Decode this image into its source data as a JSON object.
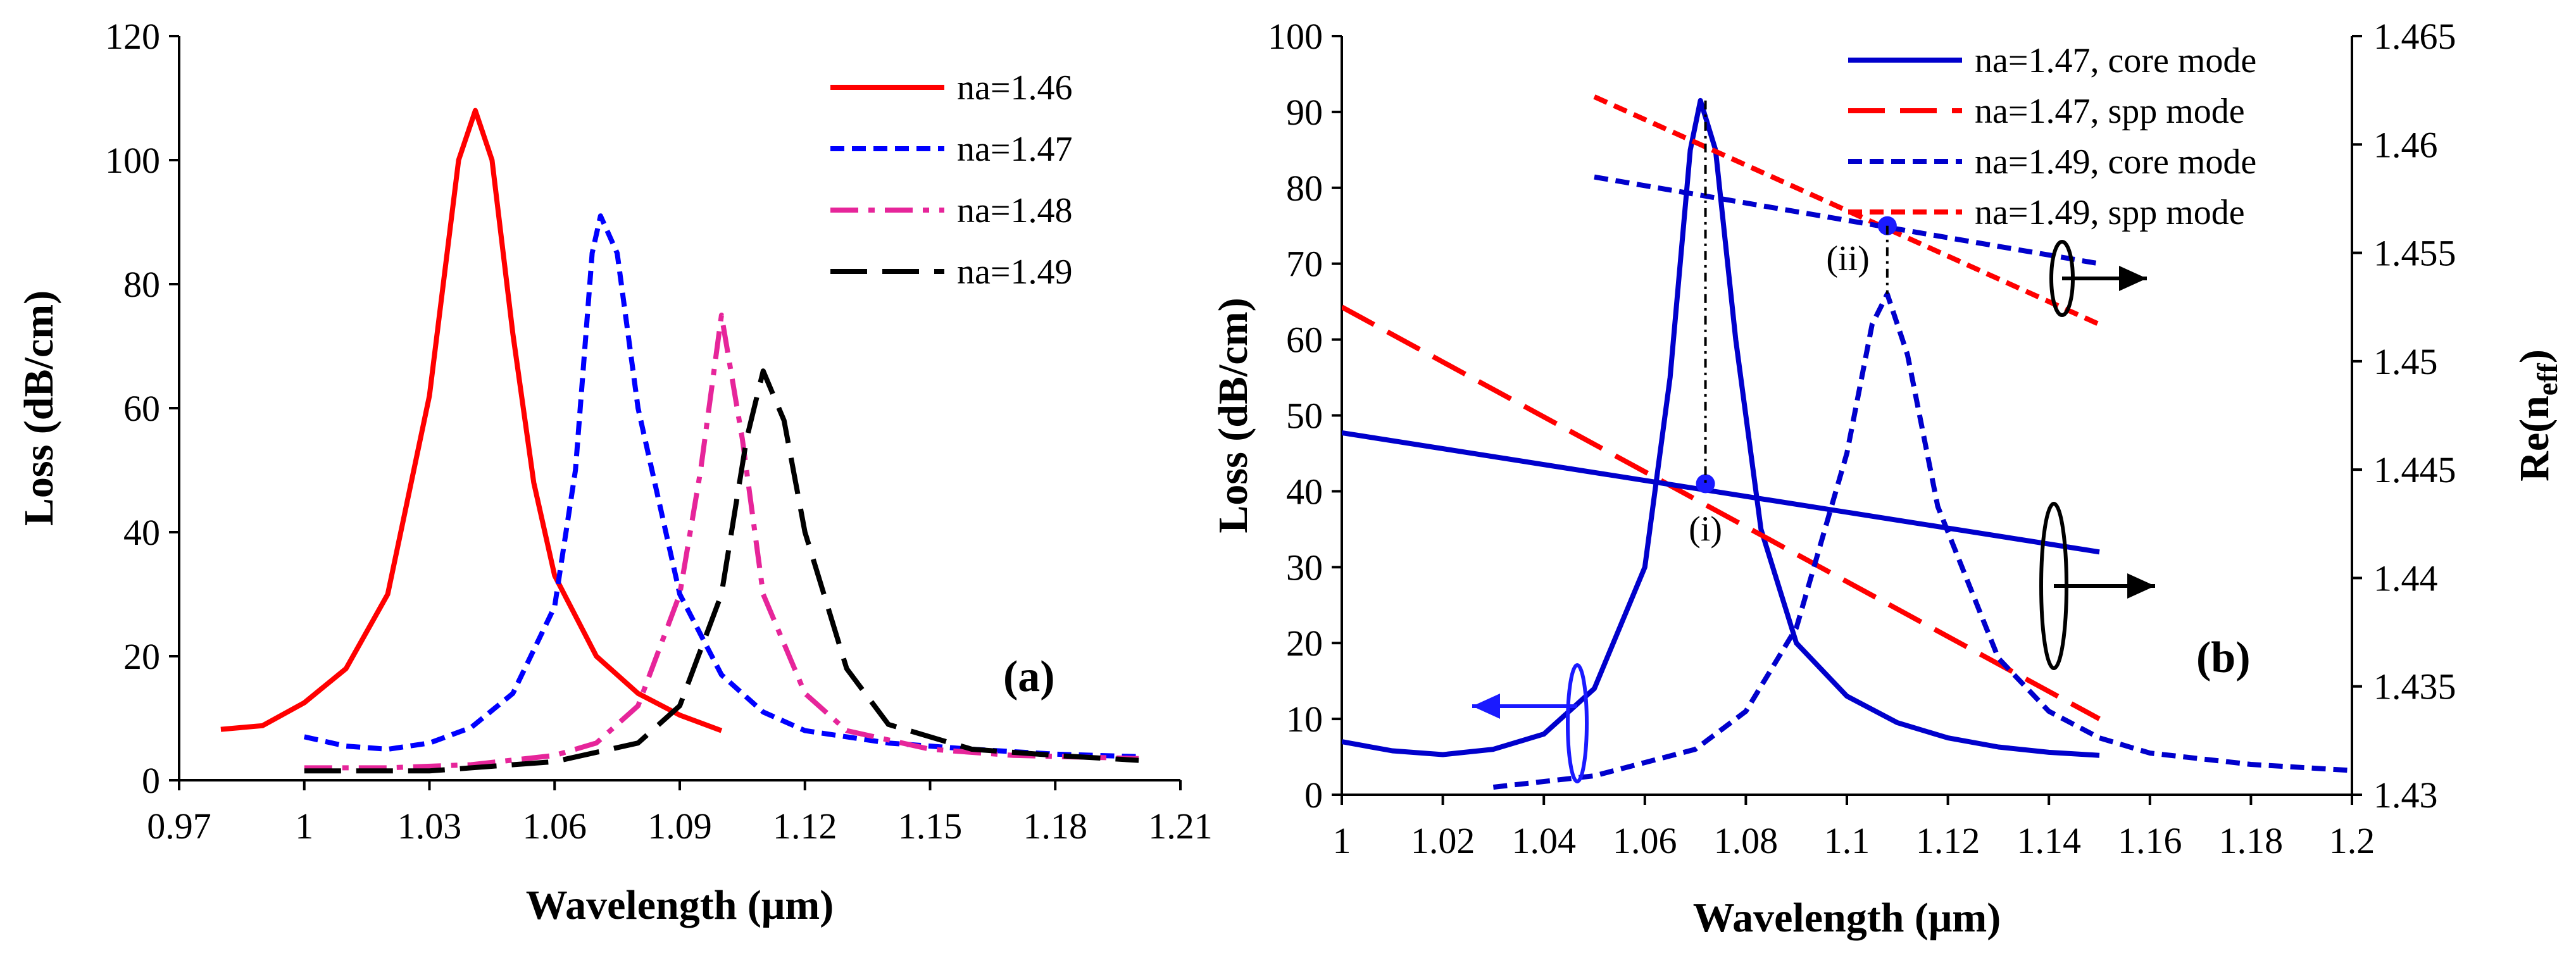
{
  "chart_data": [
    {
      "type": "line",
      "panel_label": "(a)",
      "xlabel": "Wavelength (μm)",
      "ylabel": "Loss (dB/cm)",
      "xlim": [
        0.97,
        1.21
      ],
      "ylim": [
        0,
        120
      ],
      "x_ticks": [
        0.97,
        1,
        1.03,
        1.06,
        1.09,
        1.12,
        1.15,
        1.18,
        1.21
      ],
      "x_tick_labels": [
        "0.97",
        "1",
        "1.03",
        "1.06",
        "1.09",
        "1.12",
        "1.15",
        "1.18",
        "1.21"
      ],
      "y_ticks": [
        0,
        20,
        40,
        60,
        80,
        100,
        120
      ],
      "y_tick_labels": [
        "0",
        "20",
        "40",
        "60",
        "80",
        "100",
        "120"
      ],
      "legend_position": "top-right",
      "series": [
        {
          "name": "na=1.46",
          "color": "#ff0000",
          "style": "solid",
          "points": [
            [
              0.98,
              8.2
            ],
            [
              0.99,
              8.8
            ],
            [
              1.0,
              12.5
            ],
            [
              1.01,
              18
            ],
            [
              1.02,
              30
            ],
            [
              1.03,
              62
            ],
            [
              1.037,
              100
            ],
            [
              1.041,
              108
            ],
            [
              1.045,
              100
            ],
            [
              1.05,
              72
            ],
            [
              1.055,
              48
            ],
            [
              1.06,
              33
            ],
            [
              1.07,
              20
            ],
            [
              1.08,
              14
            ],
            [
              1.09,
              10.5
            ],
            [
              1.1,
              8
            ]
          ]
        },
        {
          "name": "na=1.47",
          "color": "#0000ff",
          "style": "short-dash",
          "points": [
            [
              1.0,
              7
            ],
            [
              1.01,
              5.5
            ],
            [
              1.02,
              5
            ],
            [
              1.03,
              6
            ],
            [
              1.04,
              8.5
            ],
            [
              1.05,
              14
            ],
            [
              1.06,
              28
            ],
            [
              1.065,
              50
            ],
            [
              1.069,
              85
            ],
            [
              1.071,
              91
            ],
            [
              1.075,
              85
            ],
            [
              1.08,
              60
            ],
            [
              1.09,
              30
            ],
            [
              1.1,
              17
            ],
            [
              1.11,
              11
            ],
            [
              1.12,
              8
            ],
            [
              1.14,
              6
            ],
            [
              1.16,
              5
            ],
            [
              1.18,
              4.2
            ],
            [
              1.2,
              3.8
            ]
          ]
        },
        {
          "name": "na=1.48",
          "color": "#e6259a",
          "style": "dash-dot",
          "points": [
            [
              1.0,
              2
            ],
            [
              1.02,
              2
            ],
            [
              1.04,
              2.5
            ],
            [
              1.06,
              4
            ],
            [
              1.07,
              6
            ],
            [
              1.08,
              12
            ],
            [
              1.09,
              30
            ],
            [
              1.095,
              50
            ],
            [
              1.1,
              75
            ],
            [
              1.105,
              55
            ],
            [
              1.11,
              30
            ],
            [
              1.12,
              14
            ],
            [
              1.13,
              8
            ],
            [
              1.15,
              5
            ],
            [
              1.17,
              4
            ],
            [
              1.2,
              3.5
            ]
          ]
        },
        {
          "name": "na=1.49",
          "color": "#000000",
          "style": "long-dash",
          "points": [
            [
              1.0,
              1.5
            ],
            [
              1.03,
              1.5
            ],
            [
              1.06,
              3
            ],
            [
              1.08,
              6
            ],
            [
              1.09,
              12
            ],
            [
              1.1,
              30
            ],
            [
              1.106,
              55
            ],
            [
              1.11,
              66
            ],
            [
              1.115,
              58
            ],
            [
              1.12,
              40
            ],
            [
              1.13,
              18
            ],
            [
              1.14,
              9
            ],
            [
              1.16,
              5
            ],
            [
              1.18,
              4
            ],
            [
              1.2,
              3.2
            ]
          ]
        }
      ]
    },
    {
      "type": "line",
      "panel_label": "(b)",
      "xlabel": "Wavelength (μm)",
      "ylabel": "Loss (dB/cm)",
      "y2label": "Re(n",
      "y2label_sub": "eff",
      "y2label_end": ")",
      "xlim": [
        1,
        1.2
      ],
      "ylim": [
        0,
        100
      ],
      "y2lim": [
        1.43,
        1.465
      ],
      "x_ticks": [
        1,
        1.02,
        1.04,
        1.06,
        1.08,
        1.1,
        1.12,
        1.14,
        1.16,
        1.18,
        1.2
      ],
      "x_tick_labels": [
        "1",
        "1.02",
        "1.04",
        "1.06",
        "1.08",
        "1.1",
        "1.12",
        "1.14",
        "1.16",
        "1.18",
        "1.2"
      ],
      "y_ticks": [
        0,
        10,
        20,
        30,
        40,
        50,
        60,
        70,
        80,
        90,
        100
      ],
      "y_tick_labels": [
        "0",
        "10",
        "20",
        "30",
        "40",
        "50",
        "60",
        "70",
        "80",
        "90",
        "100"
      ],
      "y2_ticks": [
        1.43,
        1.435,
        1.44,
        1.445,
        1.45,
        1.455,
        1.46,
        1.465
      ],
      "y2_tick_labels": [
        "1.43",
        "1.435",
        "1.44",
        "1.445",
        "1.45",
        "1.455",
        "1.46",
        "1.465"
      ],
      "legend_position": "top-right",
      "series": [
        {
          "name": "na=1.47, core mode",
          "color": "#0000cc",
          "style": "solid",
          "axis": "left",
          "points": [
            [
              1.0,
              7
            ],
            [
              1.01,
              5.8
            ],
            [
              1.02,
              5.3
            ],
            [
              1.03,
              6
            ],
            [
              1.04,
              8
            ],
            [
              1.05,
              14
            ],
            [
              1.06,
              30
            ],
            [
              1.065,
              55
            ],
            [
              1.069,
              85
            ],
            [
              1.071,
              91.5
            ],
            [
              1.074,
              85
            ],
            [
              1.078,
              60
            ],
            [
              1.083,
              35
            ],
            [
              1.09,
              20
            ],
            [
              1.1,
              13
            ],
            [
              1.11,
              9.5
            ],
            [
              1.12,
              7.5
            ],
            [
              1.13,
              6.3
            ],
            [
              1.14,
              5.6
            ],
            [
              1.15,
              5.2
            ]
          ]
        },
        {
          "name": "na=1.47, spp mode",
          "color": "#ff0000",
          "style": "long-dash",
          "axis": "right",
          "points": [
            [
              1.0,
              1.4525
            ],
            [
              1.15,
              1.4335
            ]
          ]
        },
        {
          "name": "na=1.49, core mode",
          "color": "#0000cc",
          "style": "short-dash",
          "axis": "left",
          "points": [
            [
              1.03,
              1
            ],
            [
              1.05,
              2.5
            ],
            [
              1.07,
              6
            ],
            [
              1.08,
              11
            ],
            [
              1.09,
              22
            ],
            [
              1.1,
              45
            ],
            [
              1.105,
              62
            ],
            [
              1.108,
              66
            ],
            [
              1.112,
              58
            ],
            [
              1.118,
              38
            ],
            [
              1.13,
              18
            ],
            [
              1.14,
              11
            ],
            [
              1.15,
              7.5
            ],
            [
              1.16,
              5.5
            ],
            [
              1.18,
              4
            ],
            [
              1.2,
              3.2
            ]
          ]
        },
        {
          "name": "na=1.49, spp mode",
          "color": "#ff0000",
          "style": "short-dash",
          "axis": "right",
          "points": [
            [
              1.05,
              1.4622
            ],
            [
              1.15,
              1.4517
            ]
          ]
        },
        {
          "name": "na=1.49, core mode neff",
          "legend": false,
          "color": "#0000cc",
          "style": "short-dash",
          "axis": "right",
          "points": [
            [
              1.05,
              1.4585
            ],
            [
              1.15,
              1.4545
            ]
          ]
        },
        {
          "name": "na=1.47, core mode neff",
          "legend": false,
          "color": "#0000cc",
          "style": "solid",
          "axis": "right",
          "points": [
            [
              1.0,
              1.4467
            ],
            [
              1.15,
              1.4412
            ]
          ]
        }
      ],
      "annotations": [
        {
          "label": "(i)",
          "x": 1.072,
          "y": 41
        },
        {
          "label": "(ii)",
          "x": 1.108,
          "y": 75
        }
      ]
    }
  ]
}
